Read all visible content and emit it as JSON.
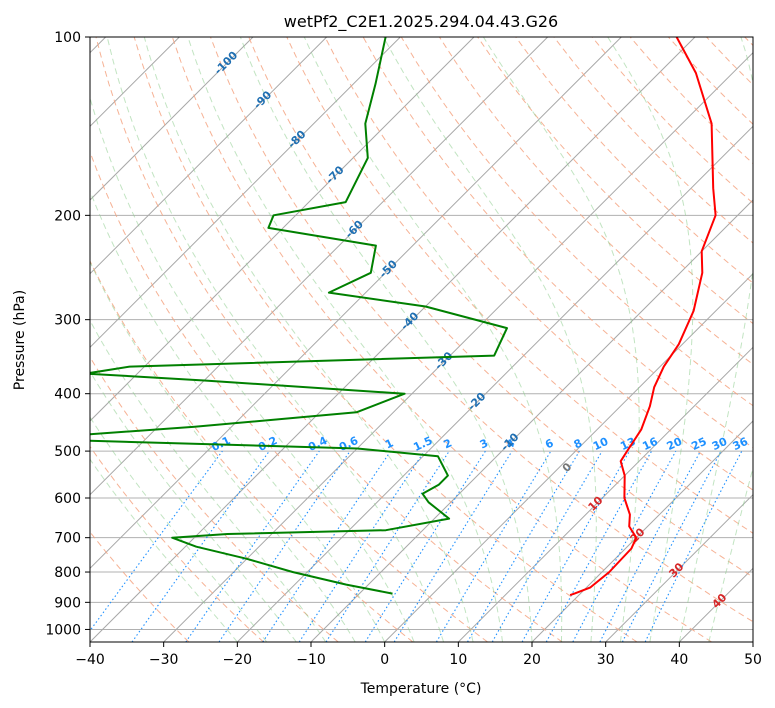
{
  "chart_data": {
    "type": "skew-t",
    "title": "wetPf2_C2E1.2025.294.04.43.G26",
    "xlabel": "Temperature (°C)",
    "ylabel": "Pressure (hPa)",
    "xlim": [
      -40,
      50
    ],
    "ylim": [
      1050,
      100
    ],
    "x_ticks": [
      "−40",
      "−30",
      "−20",
      "−10",
      "0",
      "10",
      "20",
      "30",
      "40",
      "50"
    ],
    "x_tick_values": [
      -40,
      -30,
      -20,
      -10,
      0,
      10,
      20,
      30,
      40,
      50
    ],
    "y_ticks": [
      "100",
      "200",
      "300",
      "400",
      "500",
      "600",
      "700",
      "800",
      "900",
      "1000"
    ],
    "y_tick_values": [
      100,
      200,
      300,
      400,
      500,
      600,
      700,
      800,
      900,
      1000
    ],
    "mixing_ratio_labels": [
      "0.1",
      "0.2",
      "0.4",
      "0.6",
      "1",
      "1.5",
      "2",
      "3",
      "4",
      "6",
      "8",
      "10",
      "13",
      "16",
      "20",
      "25",
      "30",
      "36"
    ],
    "mixing_ratio_values": [
      0.1,
      0.2,
      0.4,
      0.6,
      1,
      1.5,
      2,
      3,
      4,
      6,
      8,
      10,
      13,
      16,
      20,
      25,
      30,
      36
    ],
    "isotherm_labels_blue": [
      "-100",
      "-90",
      "-80",
      "-70",
      "-60",
      "-50",
      "-40",
      "-30",
      "-20",
      "-10"
    ],
    "isotherm_values_blue": [
      -100,
      -90,
      -80,
      -70,
      -60,
      -50,
      -40,
      -30,
      -20,
      -10
    ],
    "isotherm_label_zero": "0",
    "isotherm_labels_red": [
      "10",
      "20",
      "30",
      "40"
    ],
    "isotherm_values_red": [
      10,
      20,
      30,
      40
    ],
    "series": [
      {
        "name": "Temperature",
        "color": "#ff0000",
        "points": [
          [
            18.8,
            875
          ],
          [
            19.2,
            870
          ],
          [
            20.5,
            850
          ],
          [
            21,
            800
          ],
          [
            20.8,
            730
          ],
          [
            20,
            700
          ],
          [
            17.5,
            670
          ],
          [
            16,
            640
          ],
          [
            13,
            600
          ],
          [
            10,
            550
          ],
          [
            7.5,
            520
          ],
          [
            7,
            500
          ],
          [
            6,
            460
          ],
          [
            4,
            420
          ],
          [
            2,
            390
          ],
          [
            0.5,
            360
          ],
          [
            -0.5,
            330
          ],
          [
            -3,
            290
          ],
          [
            -7,
            250
          ],
          [
            -10,
            230
          ],
          [
            -13,
            200
          ],
          [
            -17,
            180
          ],
          [
            -26,
            140
          ],
          [
            -35,
            115
          ],
          [
            -42.5,
            100
          ]
        ]
      },
      {
        "name": "Dewpoint",
        "color": "#008000",
        "points": [
          [
            -5.5,
            870
          ],
          [
            -13,
            840
          ],
          [
            -22,
            800
          ],
          [
            -30,
            760
          ],
          [
            -38.5,
            725
          ],
          [
            -43,
            700
          ],
          [
            -36,
            690
          ],
          [
            -15,
            680
          ],
          [
            -8,
            650
          ],
          [
            -13,
            610
          ],
          [
            -15,
            590
          ],
          [
            -14,
            570
          ],
          [
            -14,
            550
          ],
          [
            -18,
            510
          ],
          [
            -30,
            495
          ],
          [
            -68,
            480
          ],
          [
            -70,
            470
          ],
          [
            -55,
            455
          ],
          [
            -35,
            430
          ],
          [
            -31,
            400
          ],
          [
            -60,
            380
          ],
          [
            -77,
            370
          ],
          [
            -72,
            360
          ],
          [
            -24,
            345
          ],
          [
            -26,
            310
          ],
          [
            -40,
            285
          ],
          [
            -55,
            270
          ],
          [
            -52,
            250
          ],
          [
            -55,
            225
          ],
          [
            -72,
            210
          ],
          [
            -73,
            200
          ],
          [
            -65,
            190
          ],
          [
            -68,
            160
          ],
          [
            -73,
            140
          ],
          [
            -77,
            120
          ],
          [
            -82,
            100
          ]
        ]
      }
    ]
  }
}
